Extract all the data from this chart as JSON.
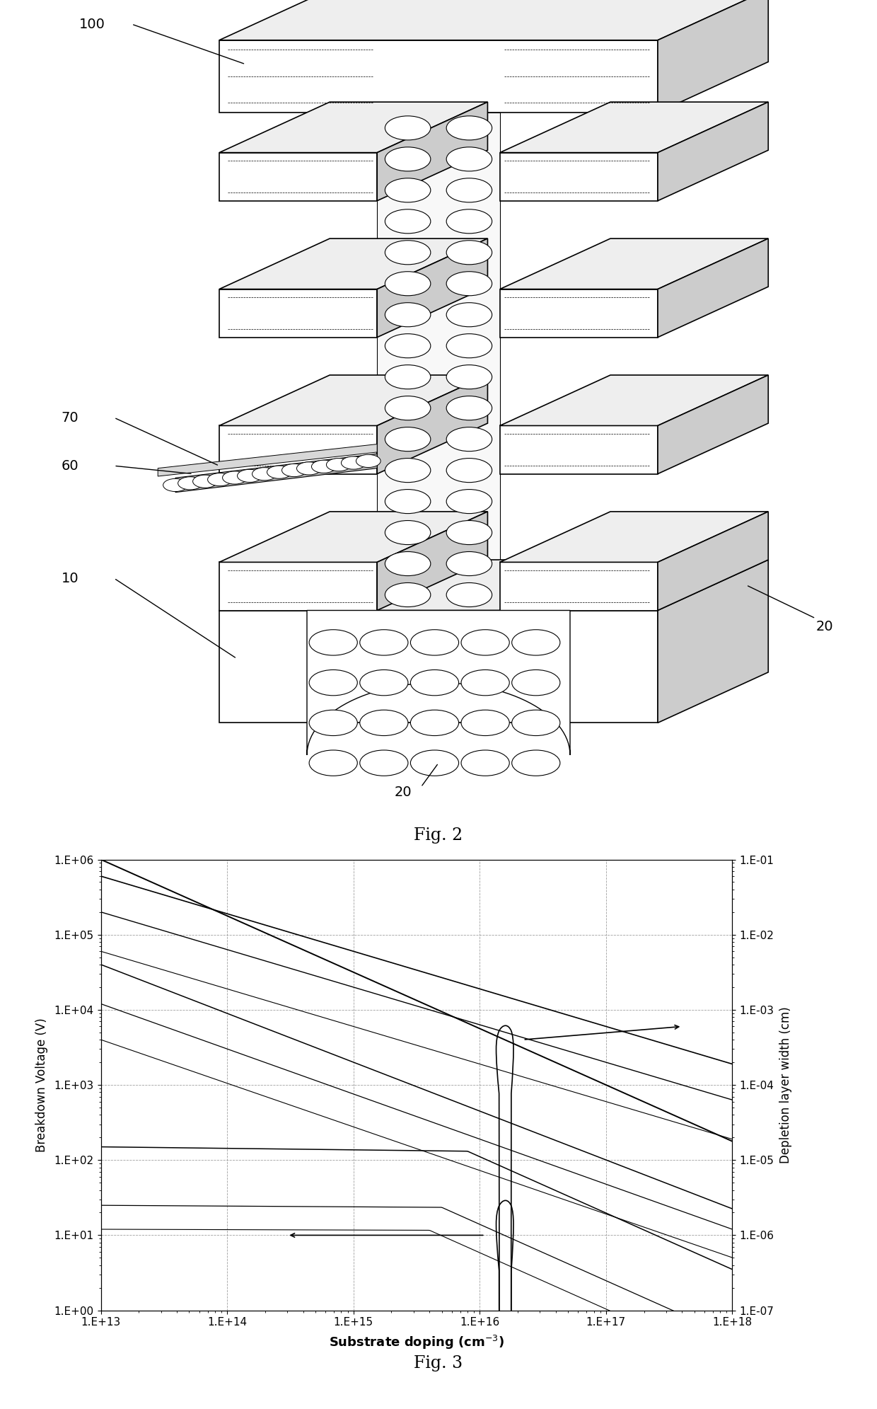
{
  "fig2_caption": "Fig. 2",
  "fig3_caption": "Fig. 3",
  "graph": {
    "xtick_labels": [
      "1.E+13",
      "1.E+14",
      "1.E+15",
      "1.E+16",
      "1.E+17",
      "1.E+18"
    ],
    "ytick_labels_left": [
      "1.E+00",
      "1.E+01",
      "1.E+02",
      "1.E+03",
      "1.E+04",
      "1.E+05",
      "1.E+06"
    ],
    "ytick_labels_right": [
      "1.E-07",
      "1.E-06",
      "1.E-05",
      "1.E-04",
      "1.E-03",
      "1.E-02",
      "1.E-01"
    ],
    "xlabel": "Substrate doping (cm-3)",
    "ylabel_left": "Breakdown Voltage (V)",
    "ylabel_right": "Depletion layer width (cm)"
  },
  "fc_white": "#ffffff",
  "fc_light": "#eeeeee",
  "fc_mid": "#cccccc",
  "fc_dark": "#aaaaaa",
  "lw_main": 1.2
}
